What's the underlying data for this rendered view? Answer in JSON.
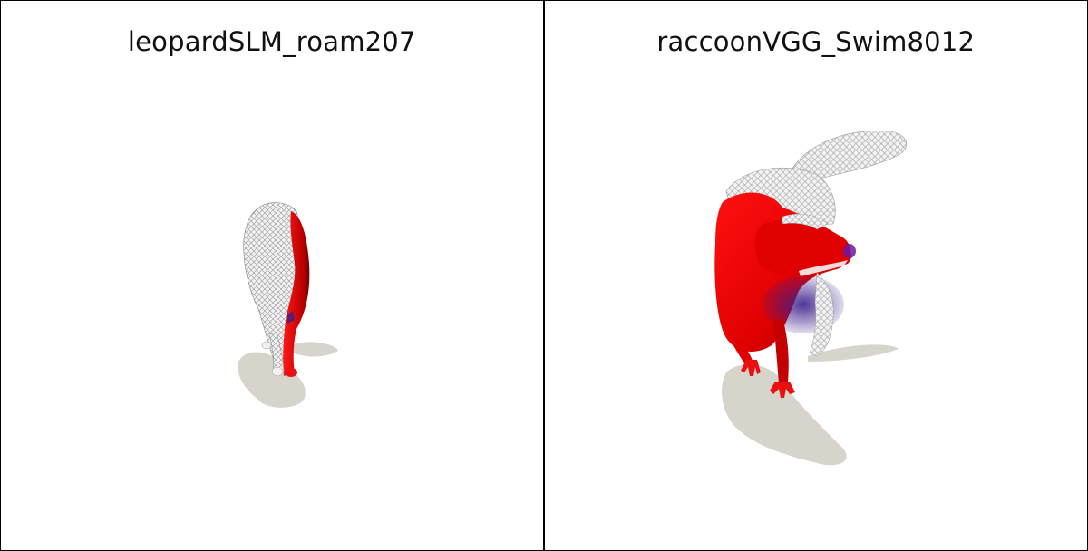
{
  "panels": [
    {
      "title": "leopardSLM_roam207",
      "subject": "leopard mesh render",
      "colors": {
        "overlay": "#e00000",
        "mesh": "#eeeeee",
        "shadow": "#d7d4cb",
        "accent": "#3c1e8c"
      }
    },
    {
      "title": "raccoonVGG_Swim8012",
      "subject": "raccoon mesh render",
      "colors": {
        "overlay": "#e00000",
        "mesh": "#eeeeee",
        "shadow": "#d7d4cb",
        "accent": "#3c1e8c"
      }
    }
  ]
}
